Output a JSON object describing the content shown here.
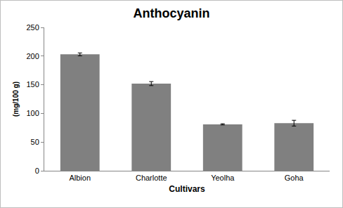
{
  "chart_data": {
    "type": "bar",
    "title": "Anthocyanin",
    "x_label": "Cultivars",
    "y_label": "(mg/100 g)",
    "categories": [
      "Albion",
      "Charlotte",
      "Yeolha",
      "Goha"
    ],
    "values": [
      203,
      152,
      81,
      83
    ],
    "errors": [
      2.5,
      3.5,
      1,
      5
    ],
    "color": "#808080",
    "ylim": [
      0,
      250
    ],
    "yticks": [
      0,
      50,
      100,
      150,
      200,
      250
    ],
    "grid": false
  }
}
